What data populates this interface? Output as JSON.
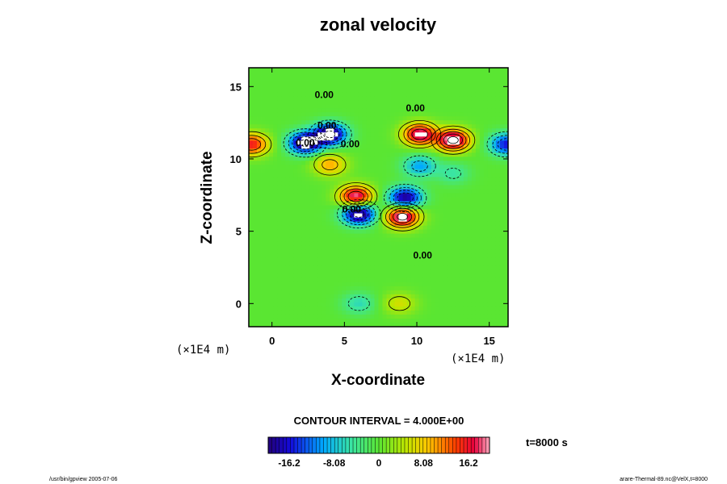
{
  "chart_data": {
    "type": "heatmap",
    "title": "zonal velocity",
    "xlabel": "X-coordinate",
    "ylabel": "Z-coordinate",
    "x_unit_label": "(×1E4 m)",
    "z_unit_label": "(×1E4 m)",
    "xlim": [
      -1.6,
      16.3
    ],
    "ylim": [
      -1.6,
      16.3
    ],
    "x_ticks": [
      0,
      5,
      10,
      15
    ],
    "y_ticks": [
      0,
      5,
      10,
      15
    ],
    "contour_interval_text": "CONTOUR INTERVAL = 4.000E+00",
    "contour_labels": [
      {
        "text": "0.00",
        "x": 3.6,
        "z": 14.2
      },
      {
        "text": "0.00",
        "x": 9.9,
        "z": 13.3
      },
      {
        "text": "0.00",
        "x": 3.8,
        "z": 12.1
      },
      {
        "text": "0.00",
        "x": 2.3,
        "z": 10.9
      },
      {
        "text": "0.00",
        "x": 5.4,
        "z": 10.8
      },
      {
        "text": "0.00",
        "x": 5.5,
        "z": 6.3
      },
      {
        "text": "0.00",
        "x": 10.4,
        "z": 3.1
      }
    ],
    "extrema": [
      {
        "x": 2.3,
        "z": 11.1,
        "value": -22
      },
      {
        "x": 4.0,
        "z": 11.7,
        "value": -22
      },
      {
        "x": 12.5,
        "z": 11.3,
        "value": 22
      },
      {
        "x": 10.2,
        "z": 11.7,
        "value": 20
      },
      {
        "x": 5.8,
        "z": 7.4,
        "value": 20
      },
      {
        "x": 9.2,
        "z": 7.3,
        "value": -20
      },
      {
        "x": 6.0,
        "z": 6.2,
        "value": -22
      },
      {
        "x": 9.0,
        "z": 6.0,
        "value": 22
      },
      {
        "x": -1.4,
        "z": 11.0,
        "value": 16
      },
      {
        "x": 16.2,
        "z": 11.0,
        "value": -16
      },
      {
        "x": 4.0,
        "z": 9.6,
        "value": 10
      },
      {
        "x": 10.2,
        "z": 9.5,
        "value": -10
      },
      {
        "x": 12.5,
        "z": 9.0,
        "value": -5
      },
      {
        "x": 6.0,
        "z": 0.0,
        "value": -6
      },
      {
        "x": 8.8,
        "z": 0.0,
        "value": 6
      }
    ],
    "colorbar": {
      "min": -20,
      "max": 20,
      "tick_labels": [
        "-16.2",
        "-8.08",
        "0",
        "8.08",
        "16.2"
      ],
      "tick_values": [
        -16.2,
        -8.08,
        0,
        8.08,
        16.2
      ]
    },
    "time_label": "t=8000 s",
    "footer_left": "/usr/bin/gpview 2005-07-06",
    "footer_right": "arare-Thermal-89.nc@VelX,t=8000"
  }
}
